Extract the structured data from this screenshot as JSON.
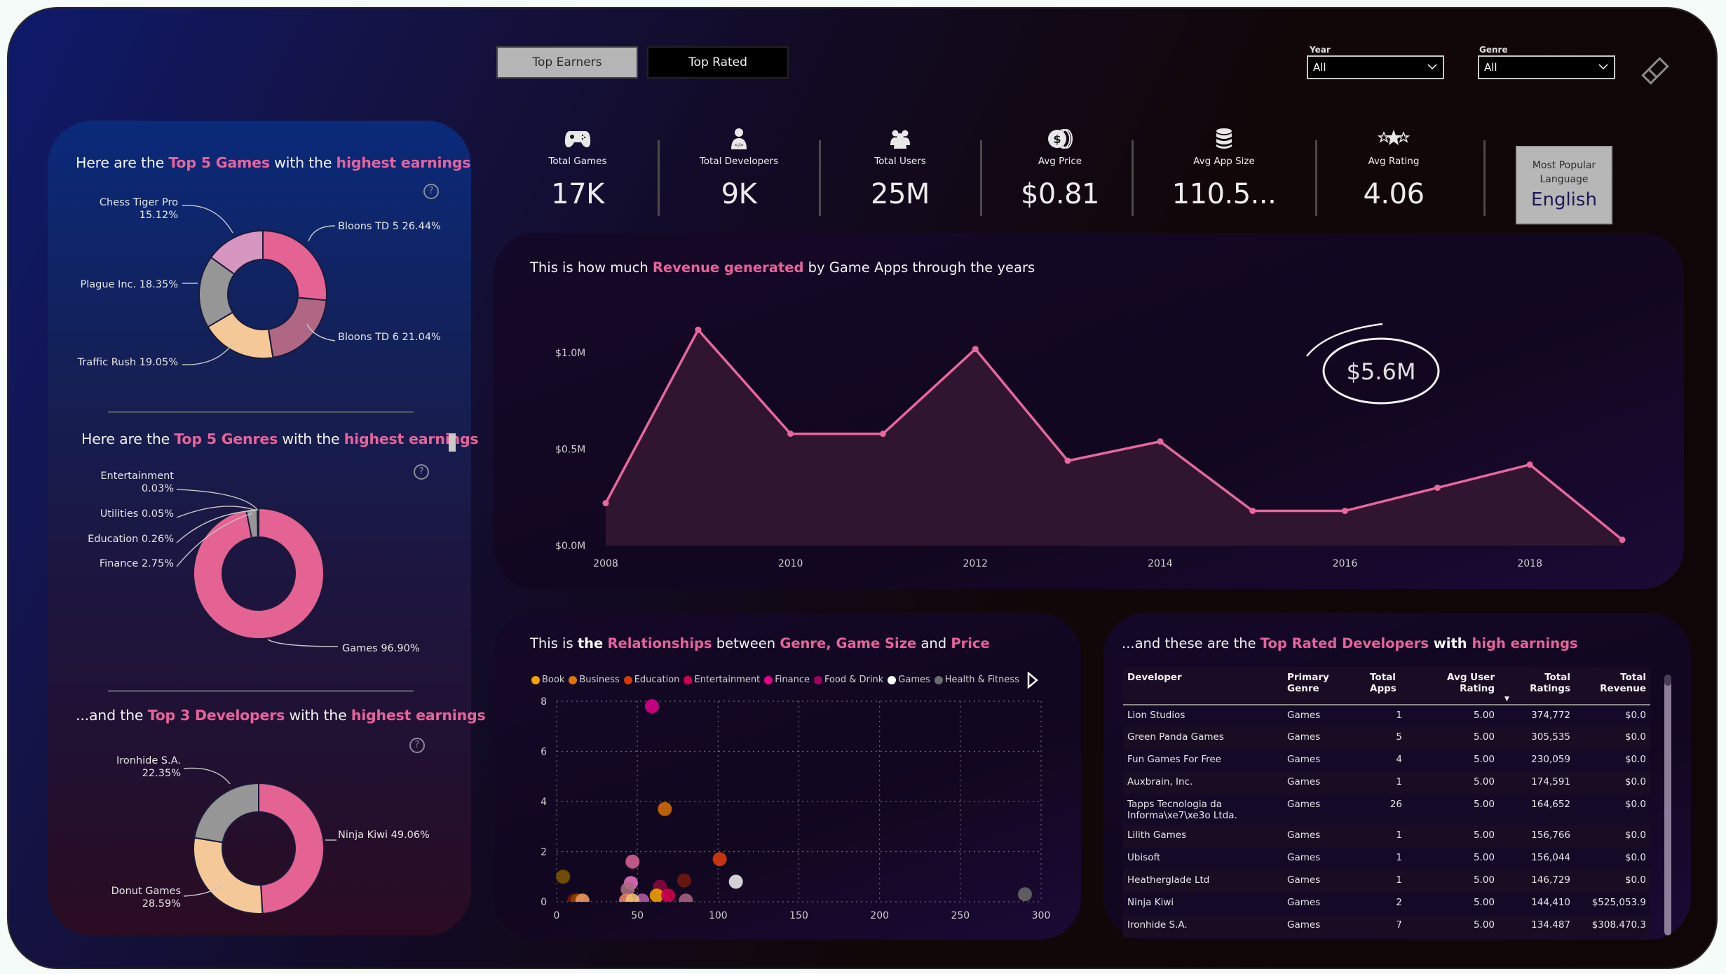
{
  "header": {
    "buttons": [
      {
        "label": "Top Earners",
        "active": true
      },
      {
        "label": "Top Rated",
        "active": false
      }
    ],
    "filters": [
      {
        "label": "Year",
        "value": "All"
      },
      {
        "label": "Genre",
        "value": "All"
      }
    ],
    "clear_filters_icon": "eraser-icon"
  },
  "kpis": [
    {
      "label": "Total Games",
      "value": "17K",
      "icon": "gamepad-icon"
    },
    {
      "label": "Total Developers",
      "value": "9K",
      "icon": "developer-icon"
    },
    {
      "label": "Total Users",
      "value": "25M",
      "icon": "users-icon"
    },
    {
      "label": "Avg Price",
      "value": "$0.81",
      "icon": "coins-icon"
    },
    {
      "label": "Avg App Size",
      "value": "110.5...",
      "icon": "database-icon"
    },
    {
      "label": "Avg Rating",
      "value": "4.06",
      "icon": "stars-icon"
    }
  ],
  "language_card": {
    "label": "Most Popular Language",
    "value": "English"
  },
  "left_panel": {
    "games": {
      "title_parts": [
        "Here are the ",
        "Top 5 Games",
        " with the ",
        "highest earnings"
      ]
    },
    "genres": {
      "title_parts": [
        "Here are the ",
        "Top 5 Genres",
        " with the ",
        "highest earnings"
      ]
    },
    "developers": {
      "title_parts": [
        "...and the ",
        "Top 3 Developers",
        " with the ",
        "highest earnings"
      ]
    },
    "help_glyph": "?"
  },
  "revenue_chart": {
    "title_parts": [
      "This is how much ",
      "Revenue generated",
      " by Game Apps through the years"
    ],
    "total_annotation": "$5.6M"
  },
  "scatter_chart": {
    "title_parts": [
      "This is ",
      "the",
      " ",
      "Relationships",
      " between ",
      "Genre, Game Size",
      " and ",
      "Price"
    ],
    "legend_next_icon": "chevron-right-icon"
  },
  "table": {
    "title_parts": [
      "...and these are the ",
      "Top Rated Developers",
      " with ",
      "high earnings"
    ],
    "columns": [
      "Developer",
      "Primary Genre",
      "Total Apps",
      "Avg User Rating",
      "Total Ratings",
      "Total Revenue"
    ],
    "sorted_column": "Total Ratings",
    "rows": [
      [
        "Lion Studios",
        "Games",
        "1",
        "5.00",
        "374,772",
        "$0.0"
      ],
      [
        "Green Panda Games",
        "Games",
        "5",
        "5.00",
        "305,535",
        "$0.0"
      ],
      [
        "Fun Games For Free",
        "Games",
        "4",
        "5.00",
        "230,059",
        "$0.0"
      ],
      [
        "Auxbrain, Inc.",
        "Games",
        "1",
        "5.00",
        "174,591",
        "$0.0"
      ],
      [
        "Tapps Tecnologia da Informa\\xe7\\xe3o Ltda.",
        "Games",
        "26",
        "5.00",
        "164,652",
        "$0.0"
      ],
      [
        "Lilith Games",
        "Games",
        "1",
        "5.00",
        "156,766",
        "$0.0"
      ],
      [
        "Ubisoft",
        "Games",
        "1",
        "5.00",
        "156,044",
        "$0.0"
      ],
      [
        "Heatherglade Ltd",
        "Games",
        "1",
        "5.00",
        "146,729",
        "$0.0"
      ],
      [
        "Ninja Kiwi",
        "Games",
        "2",
        "5.00",
        "144,410",
        "$525,053.9"
      ],
      [
        "Ironhide S.A.",
        "Games",
        "7",
        "5.00",
        "134.487",
        "$308.470.3"
      ]
    ]
  },
  "colors": {
    "accent_pink": "#e8639a",
    "line": "#e8679c",
    "area": "#2f1530"
  },
  "chart_data": [
    {
      "id": "top5-games",
      "type": "pie",
      "subtype": "donut",
      "title": "Here are the Top 5 Games with the highest earnings",
      "categories": [
        "Bloons TD 5",
        "Bloons TD 6",
        "Traffic Rush",
        "Plague Inc.",
        "Chess Tiger Pro"
      ],
      "values": [
        26.44,
        21.04,
        19.05,
        18.35,
        15.12
      ],
      "labels": [
        "Bloons TD 5 26.44%",
        "Bloons TD 6 21.04%",
        "Traffic Rush 19.05%",
        "Plague Inc. 18.35%",
        "Chess Tiger Pro 15.12%"
      ],
      "colors": [
        "#e46393",
        "#b06783",
        "#f5c897",
        "#969696",
        "#d796c0"
      ]
    },
    {
      "id": "top5-genres",
      "type": "pie",
      "subtype": "donut",
      "title": "Here are the Top 5 Genres with the highest earnings",
      "categories": [
        "Games",
        "Finance",
        "Education",
        "Utilities",
        "Entertainment"
      ],
      "values": [
        96.9,
        2.75,
        0.26,
        0.05,
        0.03
      ],
      "labels": [
        "Games 96.90%",
        "Finance 2.75%",
        "Education 0.26%",
        "Utilities 0.05%",
        "Entertainment 0.03%"
      ],
      "colors": [
        "#e46393",
        "#969696",
        "#f5c897",
        "#b06783",
        "#e88a7a"
      ]
    },
    {
      "id": "top3-developers",
      "type": "pie",
      "subtype": "donut",
      "title": "...and the Top 3 Developers with the highest earnings",
      "categories": [
        "Ninja Kiwi",
        "Donut Games",
        "Ironhide S.A."
      ],
      "values": [
        49.06,
        28.59,
        22.35
      ],
      "labels": [
        "Ninja Kiwi 49.06%",
        "Donut Games 28.59%",
        "Ironhide S.A. 22.35%"
      ],
      "colors": [
        "#e46393",
        "#f5c897",
        "#969696"
      ]
    },
    {
      "id": "revenue-by-year",
      "type": "area",
      "title": "This is how much Revenue generated by Game Apps through the years",
      "x": [
        2008,
        2009,
        2010,
        2011,
        2012,
        2013,
        2014,
        2015,
        2016,
        2017,
        2018,
        2019
      ],
      "values": [
        0.22,
        1.12,
        0.58,
        0.58,
        1.02,
        0.44,
        0.54,
        0.18,
        0.18,
        0.3,
        0.42,
        0.03
      ],
      "unit": "$M",
      "xticks": [
        "2008",
        "2010",
        "2012",
        "2014",
        "2016",
        "2018"
      ],
      "yticks": [
        "$0.0M",
        "$0.5M",
        "$1.0M"
      ],
      "ylim": [
        0,
        1.15
      ],
      "xlim": [
        2008,
        2019
      ],
      "annotation": "$5.6M",
      "grid": false
    },
    {
      "id": "genre-size-price",
      "type": "scatter",
      "title": "This is the Relationships between Genre, Game Size and Price",
      "xlabel": "",
      "ylabel": "",
      "xlim": [
        0,
        300
      ],
      "ylim": [
        0,
        8
      ],
      "xticks": [
        "0",
        "50",
        "100",
        "150",
        "200",
        "250",
        "300"
      ],
      "yticks": [
        "0",
        "2",
        "4",
        "6",
        "8"
      ],
      "grid": true,
      "legend_position": "top",
      "legend": [
        {
          "name": "Book",
          "color": "#f4a300"
        },
        {
          "name": "Business",
          "color": "#e07400"
        },
        {
          "name": "Education",
          "color": "#d83a00"
        },
        {
          "name": "Entertainment",
          "color": "#d4004e"
        },
        {
          "name": "Finance",
          "color": "#e6008a"
        },
        {
          "name": "Food & Drink",
          "color": "#a3005f"
        },
        {
          "name": "Games",
          "color": "#ffffff"
        },
        {
          "name": "Health & Fitness",
          "color": "#6b6b6b"
        }
      ],
      "points": [
        {
          "x": 59,
          "y": 7.8,
          "color": "#d8008a"
        },
        {
          "x": 67,
          "y": 3.7,
          "color": "#d06a00"
        },
        {
          "x": 101,
          "y": 1.7,
          "color": "#d83a10"
        },
        {
          "x": 47,
          "y": 1.6,
          "color": "#d06090"
        },
        {
          "x": 4,
          "y": 1.0,
          "color": "#7a5400"
        },
        {
          "x": 111,
          "y": 0.8,
          "color": "#e8e8ec"
        },
        {
          "x": 79,
          "y": 0.85,
          "color": "#6e1a0e"
        },
        {
          "x": 46,
          "y": 0.75,
          "color": "#e070b8"
        },
        {
          "x": 44,
          "y": 0.5,
          "color": "#a86a80"
        },
        {
          "x": 64,
          "y": 0.6,
          "color": "#86083e"
        },
        {
          "x": 62,
          "y": 0.25,
          "color": "#f0a000"
        },
        {
          "x": 69,
          "y": 0.25,
          "color": "#d0004c"
        },
        {
          "x": 80,
          "y": 0.05,
          "color": "#a86080"
        },
        {
          "x": 53,
          "y": 0.05,
          "color": "#b05aa0"
        },
        {
          "x": 43,
          "y": 0.05,
          "color": "#e8806a"
        },
        {
          "x": 47,
          "y": 0.05,
          "color": "#f0c070"
        },
        {
          "x": 11,
          "y": 0.05,
          "color": "#7a1800"
        },
        {
          "x": 13,
          "y": 0.05,
          "color": "#8a4000"
        },
        {
          "x": 16,
          "y": 0.05,
          "color": "#e89860"
        },
        {
          "x": 290,
          "y": 0.3,
          "color": "#666666"
        }
      ]
    }
  ]
}
